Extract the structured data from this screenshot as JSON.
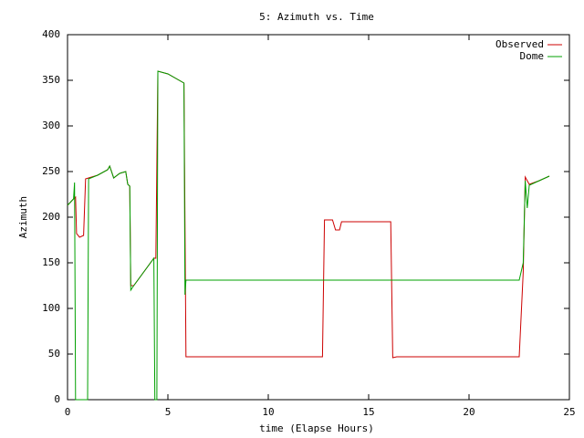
{
  "chart_data": {
    "type": "line",
    "title": "5: Azimuth vs. Time",
    "x_label": "time (Elapse Hours)",
    "y_label": "Azimuth",
    "xlim": [
      0,
      25
    ],
    "xticks": [
      0,
      5,
      10,
      15,
      20,
      25
    ],
    "ylim": [
      0,
      400
    ],
    "yticks": [
      0,
      50,
      100,
      150,
      200,
      250,
      300,
      350,
      400
    ],
    "legend": "top-right",
    "series": [
      {
        "name": "Observed",
        "color": "#cc0000",
        "x": [
          0,
          0.3,
          0.4,
          0.45,
          0.6,
          0.8,
          0.9,
          1.5,
          2.0,
          2.1,
          2.3,
          2.6,
          2.9,
          3.0,
          3.1,
          3.15,
          3.3,
          4.3,
          4.4,
          4.5,
          5.0,
          5.8,
          5.9,
          12.7,
          12.8,
          13.2,
          13.35,
          13.55,
          13.65,
          16.1,
          16.2,
          16.4,
          22.5,
          22.7,
          22.8,
          23.0,
          23.5,
          24.0
        ],
        "values": [
          213,
          220,
          222,
          182,
          178,
          180,
          242,
          246,
          252,
          256,
          243,
          248,
          250,
          236,
          234,
          125,
          125,
          155,
          155,
          360,
          357,
          347,
          47,
          47,
          197,
          197,
          186,
          186,
          195,
          195,
          46,
          47,
          47,
          140,
          244,
          236,
          240,
          245
        ]
      },
      {
        "name": "Dome",
        "color": "#00a000",
        "x": [
          0,
          0.3,
          0.35,
          0.4,
          1.0,
          1.05,
          1.5,
          2.0,
          2.1,
          2.3,
          2.6,
          2.9,
          3.0,
          3.1,
          3.15,
          3.3,
          4.3,
          4.35,
          4.45,
          4.5,
          5.0,
          5.8,
          5.85,
          5.9,
          22.5,
          22.7,
          22.8,
          22.9,
          23.0,
          23.5,
          24.0
        ],
        "values": [
          213,
          220,
          238,
          0,
          0,
          242,
          246,
          252,
          256,
          243,
          248,
          250,
          236,
          234,
          120,
          125,
          155,
          0,
          0,
          360,
          357,
          347,
          115,
          131,
          131,
          150,
          240,
          210,
          235,
          240,
          245
        ]
      }
    ]
  }
}
